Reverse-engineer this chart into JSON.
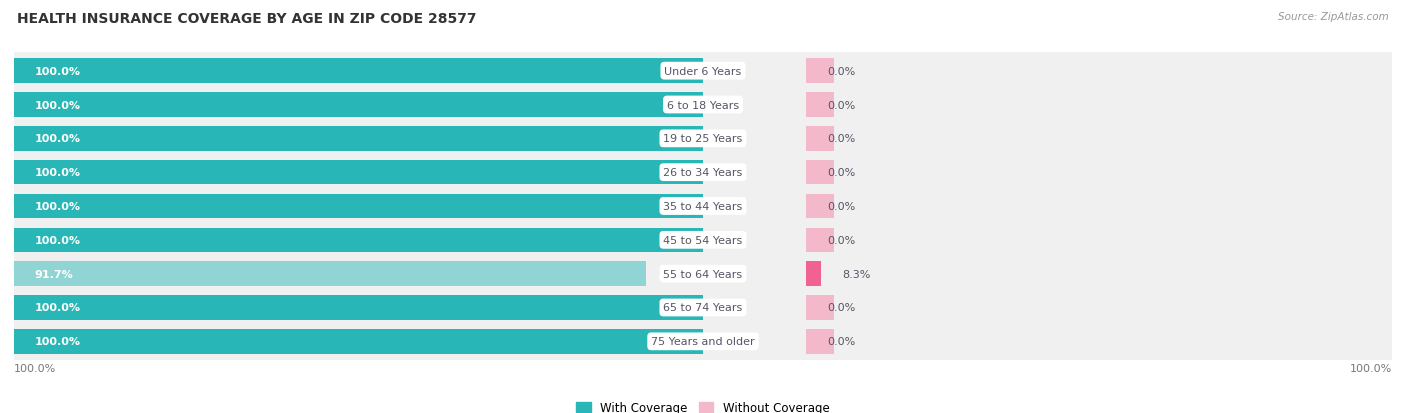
{
  "title": "HEALTH INSURANCE COVERAGE BY AGE IN ZIP CODE 28577",
  "source": "Source: ZipAtlas.com",
  "categories": [
    "Under 6 Years",
    "6 to 18 Years",
    "19 to 25 Years",
    "26 to 34 Years",
    "35 to 44 Years",
    "45 to 54 Years",
    "55 to 64 Years",
    "65 to 74 Years",
    "75 Years and older"
  ],
  "with_coverage": [
    100.0,
    100.0,
    100.0,
    100.0,
    100.0,
    100.0,
    91.7,
    100.0,
    100.0
  ],
  "without_coverage": [
    0.0,
    0.0,
    0.0,
    0.0,
    0.0,
    0.0,
    8.3,
    0.0,
    0.0
  ],
  "color_with_full": "#29b6b6",
  "color_with_light": "#90d4d4",
  "color_without_small": "#f4b8cb",
  "color_without_large": "#f06292",
  "color_row_bg": "#f0f0f0",
  "color_fig_bg": "#ffffff",
  "color_label_text": "#555566",
  "color_pct_white": "#ffffff",
  "color_pct_dark": "#555566",
  "title_fontsize": 10,
  "label_fontsize": 8,
  "pct_fontsize": 8,
  "legend_fontsize": 8.5,
  "axis_pct_fontsize": 8,
  "left_axis_label": "100.0%",
  "right_axis_label": "100.0%",
  "total_width": 100,
  "mid_point": 50,
  "without_bar_scale": 15
}
